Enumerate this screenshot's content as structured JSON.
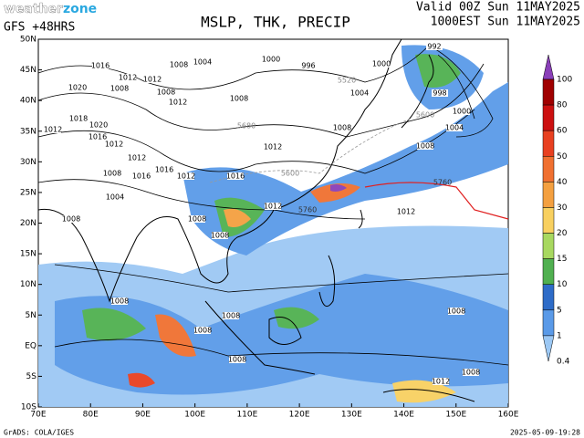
{
  "header": {
    "brand_a": "weather",
    "brand_b": "zone",
    "model": "GFS +48HRS",
    "title": "MSLP, THK, PRECIP",
    "valid_utc": "Valid 00Z Sun 11MAY2025",
    "valid_local": "1000EST Sun 11MAY2025"
  },
  "lat_labels": [
    "50N",
    "45N",
    "40N",
    "35N",
    "30N",
    "25N",
    "20N",
    "15N",
    "10N",
    "5N",
    "EQ",
    "5S",
    "10S"
  ],
  "lon_labels": [
    "70E",
    "80E",
    "90E",
    "100E",
    "110E",
    "120E",
    "130E",
    "140E",
    "150E",
    "160E"
  ],
  "colorbar": {
    "levels": [
      100,
      80,
      60,
      50,
      40,
      30,
      20,
      15,
      10,
      5,
      1,
      0.4
    ],
    "colors": [
      "#8a3fb8",
      "#a00000",
      "#cc1010",
      "#e84020",
      "#f07030",
      "#f4a040",
      "#f8d060",
      "#a8d860",
      "#50b050",
      "#2e6cc8",
      "#5a9ae8",
      "#9cc8f4"
    ]
  },
  "isobar_labels": [
    "1008",
    "1004",
    "1000",
    "996",
    "1016",
    "1012",
    "1020",
    "1008",
    "1012",
    "1008",
    "1008",
    "1012",
    "1018",
    "1020",
    "1012",
    "1016",
    "1012",
    "1012",
    "1016",
    "1012",
    "1008",
    "1016",
    "1004",
    "1008",
    "1008",
    "1008",
    "1012",
    "1008",
    "1012",
    "1016",
    "1004",
    "1000",
    "992",
    "998",
    "1000",
    "1004",
    "1008",
    "1012",
    "1008",
    "1008",
    "1008",
    "1008",
    "1008",
    "1008",
    "1012"
  ],
  "thickness_labels": [
    "5760",
    "5760",
    "5600",
    "5680",
    "5600",
    "5520"
  ],
  "footer": {
    "left": "GrADS: COLA/IGES",
    "right": "2025-05-09-19:28"
  }
}
